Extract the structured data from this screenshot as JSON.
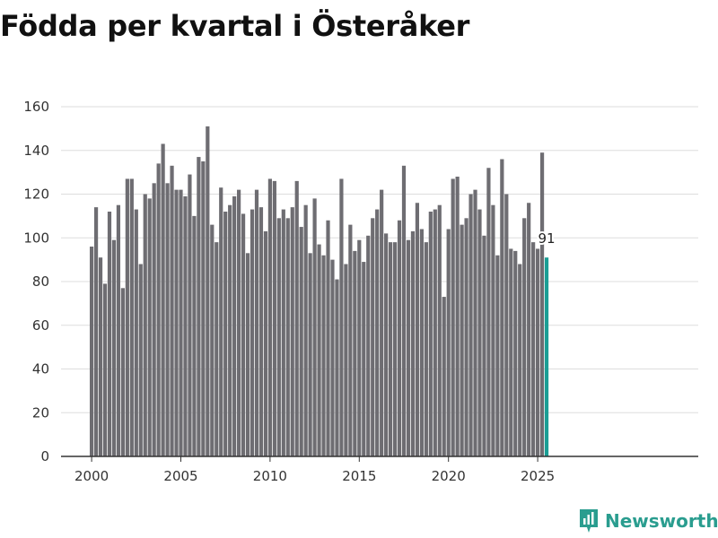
{
  "title": "Födda per kvartal i Österåker",
  "brand": {
    "name": "Newsworthy",
    "icon": "newsworthy-logo-icon",
    "color": "#2a9d8f"
  },
  "colors": {
    "bar": "#6e6d72",
    "highlight": "#1a9e95",
    "grid": "#dddddd",
    "axis": "#333333"
  },
  "chart_data": {
    "type": "bar",
    "title": "Födda per kvartal i Österåker",
    "xlabel": "",
    "ylabel": "",
    "ylim": [
      0,
      160
    ],
    "yticks": [
      0,
      20,
      40,
      60,
      80,
      100,
      120,
      140,
      160
    ],
    "xticks": [
      "2000",
      "2005",
      "2010",
      "2015",
      "2020",
      "2025"
    ],
    "start_year": 2000,
    "grid": true,
    "legend": "none",
    "highlight_label": "91",
    "series": [
      {
        "name": "Födda per kvartal",
        "values": [
          96,
          114,
          91,
          79,
          112,
          99,
          115,
          77,
          127,
          127,
          113,
          88,
          120,
          118,
          125,
          134,
          143,
          125,
          133,
          122,
          122,
          119,
          129,
          110,
          137,
          135,
          151,
          106,
          98,
          123,
          112,
          115,
          119,
          122,
          111,
          93,
          113,
          122,
          114,
          103,
          127,
          126,
          109,
          113,
          109,
          114,
          126,
          105,
          115,
          93,
          118,
          97,
          92,
          108,
          90,
          81,
          127,
          88,
          106,
          94,
          99,
          89,
          101,
          109,
          113,
          122,
          102,
          98,
          98,
          108,
          133,
          99,
          103,
          116,
          104,
          98,
          112,
          113,
          115,
          73,
          104,
          127,
          128,
          106,
          109,
          120,
          122,
          113,
          101,
          132,
          115,
          92,
          136,
          120,
          95,
          94,
          88,
          109,
          116,
          98,
          95,
          139,
          91
        ]
      }
    ]
  }
}
